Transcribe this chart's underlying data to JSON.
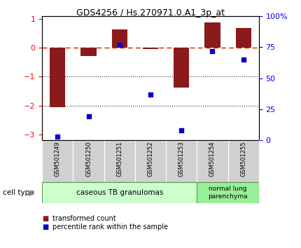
{
  "title": "GDS4256 / Hs.270971.0.A1_3p_at",
  "samples": [
    "GSM501249",
    "GSM501250",
    "GSM501251",
    "GSM501252",
    "GSM501253",
    "GSM501254",
    "GSM501255"
  ],
  "bar_values": [
    -2.05,
    -0.28,
    0.65,
    -0.03,
    -1.38,
    0.88,
    0.68
  ],
  "dot_values": [
    3,
    19,
    77,
    37,
    8,
    72,
    65
  ],
  "ylim_left": [
    -3.2,
    1.1
  ],
  "ylim_right": [
    0,
    100
  ],
  "yticks_left": [
    -3,
    -2,
    -1,
    0,
    1
  ],
  "yticks_right": [
    0,
    25,
    50,
    75,
    100
  ],
  "yticklabels_right": [
    "0",
    "25",
    "50",
    "75",
    "100%"
  ],
  "bar_color": "#8B1A1A",
  "dot_color": "#0000CC",
  "hline_color": "#CC2200",
  "dotted_line_color": "#333333",
  "cell_type_label": "cell type",
  "group1_label": "caseous TB granulomas",
  "group2_label": "normal lung\nparenchyma",
  "group1_indices": [
    0,
    1,
    2,
    3,
    4
  ],
  "group2_indices": [
    5,
    6
  ],
  "group1_color": "#CCFFCC",
  "group2_color": "#99EE99",
  "legend_bar_label": "transformed count",
  "legend_dot_label": "percentile rank within the sample",
  "tick_area_color": "#D0D0D0",
  "bar_width": 0.5
}
